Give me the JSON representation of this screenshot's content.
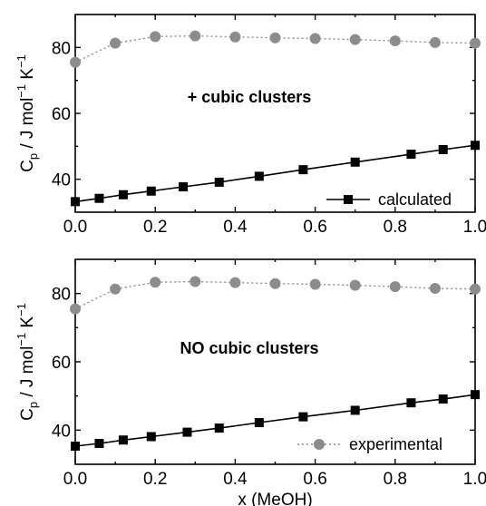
{
  "chart_data": [
    {
      "type": "line",
      "panel": "top",
      "annotation": "+ cubic clusters",
      "xlabel": "",
      "ylabel": "C_p / J mol^-1 K^-1",
      "ylabel_parts": {
        "c": "C",
        "sub": "p",
        "mid": " / J mol",
        "sup1": "−1",
        "k": " K",
        "sup2": "−1"
      },
      "xlim": [
        0.0,
        1.0
      ],
      "ylim": [
        30,
        90
      ],
      "x_ticks": [
        0.0,
        0.2,
        0.4,
        0.6,
        0.8,
        1.0
      ],
      "x_tick_labels": [
        "0.0",
        "0.2",
        "0.4",
        "0.6",
        "0.8",
        "1.0"
      ],
      "y_ticks": [
        40,
        60,
        80
      ],
      "y_tick_labels": [
        "40",
        "60",
        "80"
      ],
      "legend": {
        "label": "calculated",
        "series": "calculated",
        "position": "bottom-right"
      },
      "grid": false,
      "series": [
        {
          "name": "calculated",
          "color": "#000000",
          "style": "solid-square",
          "x": [
            0.0,
            0.06,
            0.12,
            0.19,
            0.27,
            0.36,
            0.46,
            0.57,
            0.7,
            0.84,
            0.92,
            1.0
          ],
          "values": [
            33.2,
            34.2,
            35.3,
            36.4,
            37.7,
            39.1,
            40.9,
            42.9,
            45.2,
            47.6,
            49.0,
            50.3
          ]
        },
        {
          "name": "experimental",
          "color": "#8c8c8c",
          "style": "dotted-circle",
          "x": [
            0.0,
            0.1,
            0.2,
            0.3,
            0.4,
            0.5,
            0.6,
            0.7,
            0.8,
            0.9,
            1.0
          ],
          "values": [
            75.5,
            81.3,
            83.3,
            83.5,
            83.2,
            82.9,
            82.7,
            82.4,
            82.0,
            81.5,
            81.3
          ]
        }
      ]
    },
    {
      "type": "line",
      "panel": "bottom",
      "annotation": "NO cubic clusters",
      "xlabel": "x (MeOH)",
      "ylabel": "C_p / J mol^-1 K^-1",
      "ylabel_parts": {
        "c": "C",
        "sub": "p",
        "mid": " / J mol",
        "sup1": "−1",
        "k": " K",
        "sup2": "−1"
      },
      "xlim": [
        0.0,
        1.0
      ],
      "ylim": [
        30,
        90
      ],
      "x_ticks": [
        0.0,
        0.2,
        0.4,
        0.6,
        0.8,
        1.0
      ],
      "x_tick_labels": [
        "0.0",
        "0.2",
        "0.4",
        "0.6",
        "0.8",
        "1.0"
      ],
      "y_ticks": [
        40,
        60,
        80
      ],
      "y_tick_labels": [
        "40",
        "60",
        "80"
      ],
      "legend": {
        "label": "experimental",
        "series": "experimental",
        "position": "bottom-right"
      },
      "grid": false,
      "series": [
        {
          "name": "calculated",
          "color": "#000000",
          "style": "solid-square",
          "x": [
            0.0,
            0.06,
            0.12,
            0.19,
            0.28,
            0.36,
            0.46,
            0.57,
            0.7,
            0.84,
            0.92,
            1.0
          ],
          "values": [
            35.3,
            36.1,
            37.1,
            38.1,
            39.4,
            40.6,
            42.2,
            43.9,
            45.8,
            48.0,
            49.1,
            50.4
          ]
        },
        {
          "name": "experimental",
          "color": "#8c8c8c",
          "style": "dotted-circle",
          "x": [
            0.0,
            0.1,
            0.2,
            0.3,
            0.4,
            0.5,
            0.6,
            0.7,
            0.8,
            0.9,
            1.0
          ],
          "values": [
            75.5,
            81.3,
            83.3,
            83.5,
            83.2,
            82.9,
            82.7,
            82.4,
            82.0,
            81.5,
            81.3
          ]
        }
      ]
    }
  ]
}
